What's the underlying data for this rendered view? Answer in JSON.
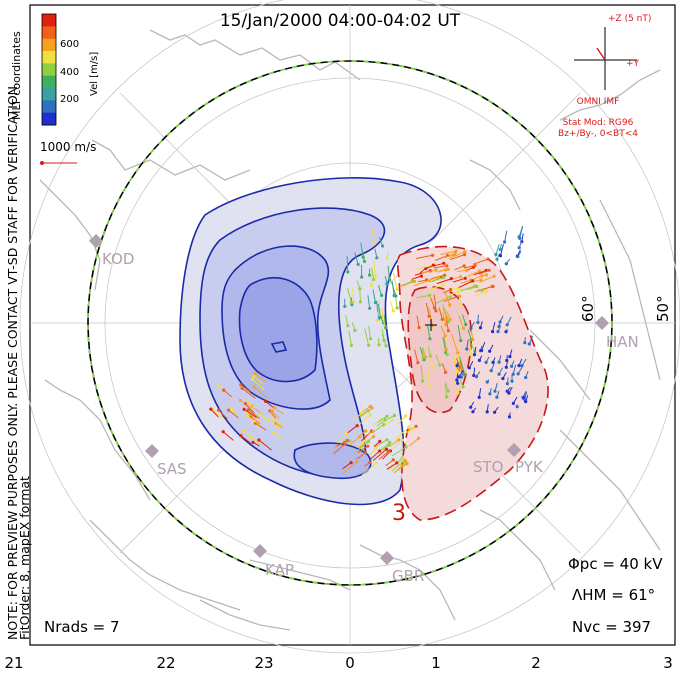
{
  "title": "15/Jan/2000 04:00-04:02 UT",
  "colorbar": {
    "axis_label": "Vel [m/s]",
    "ticks": [
      "600",
      "400",
      "200"
    ],
    "colors": [
      "#e02010",
      "#f06018",
      "#f8a020",
      "#f0e040",
      "#90d040",
      "#40b060",
      "#3aa0a0",
      "#3070c0",
      "#2030d0"
    ]
  },
  "coordinates_label": "MLT coordinates",
  "scale_vector_label": "1000 m/s",
  "side_note": "NOTE: FOR PREVIEW PURPOSES ONLY. PLEASE CONTACT VT-SD STAFF FOR VERIFICATION.",
  "fit_order": "FitOrder: 8, mapEX format",
  "imf": {
    "z_label": "+Z (5 nT)",
    "y_label": "+Y",
    "source": "OMNI IMF",
    "stat_mod": "Stat Mod: RG96",
    "condition": "Bz+/By-, 0<BT<4",
    "color": "#e01818"
  },
  "latitude_labels": [
    "60°",
    "50°"
  ],
  "stations": [
    "KOD",
    "SAS",
    "KAP",
    "GBR",
    "STO",
    "PYK",
    "HAN"
  ],
  "contour_label": "3",
  "stats": {
    "phi_pc": "Φpc = 40 kV",
    "lambda_hm": "ΛHM = 61°",
    "n_vc": "Nvc = 397",
    "n_rads": "Nrads = 7"
  },
  "mlt_ticks": [
    "21",
    "22",
    "23",
    "0",
    "1",
    "2",
    "3"
  ],
  "colors": {
    "negative_cell": "#1a2aa8",
    "positive_cell": "#c81818",
    "heppner_boundary": "#000000",
    "boundary_dash": "#7fdc3c",
    "coastline": "#b8b8b8",
    "grid": "#c8c8c8",
    "station": "#b0a0b0"
  }
}
